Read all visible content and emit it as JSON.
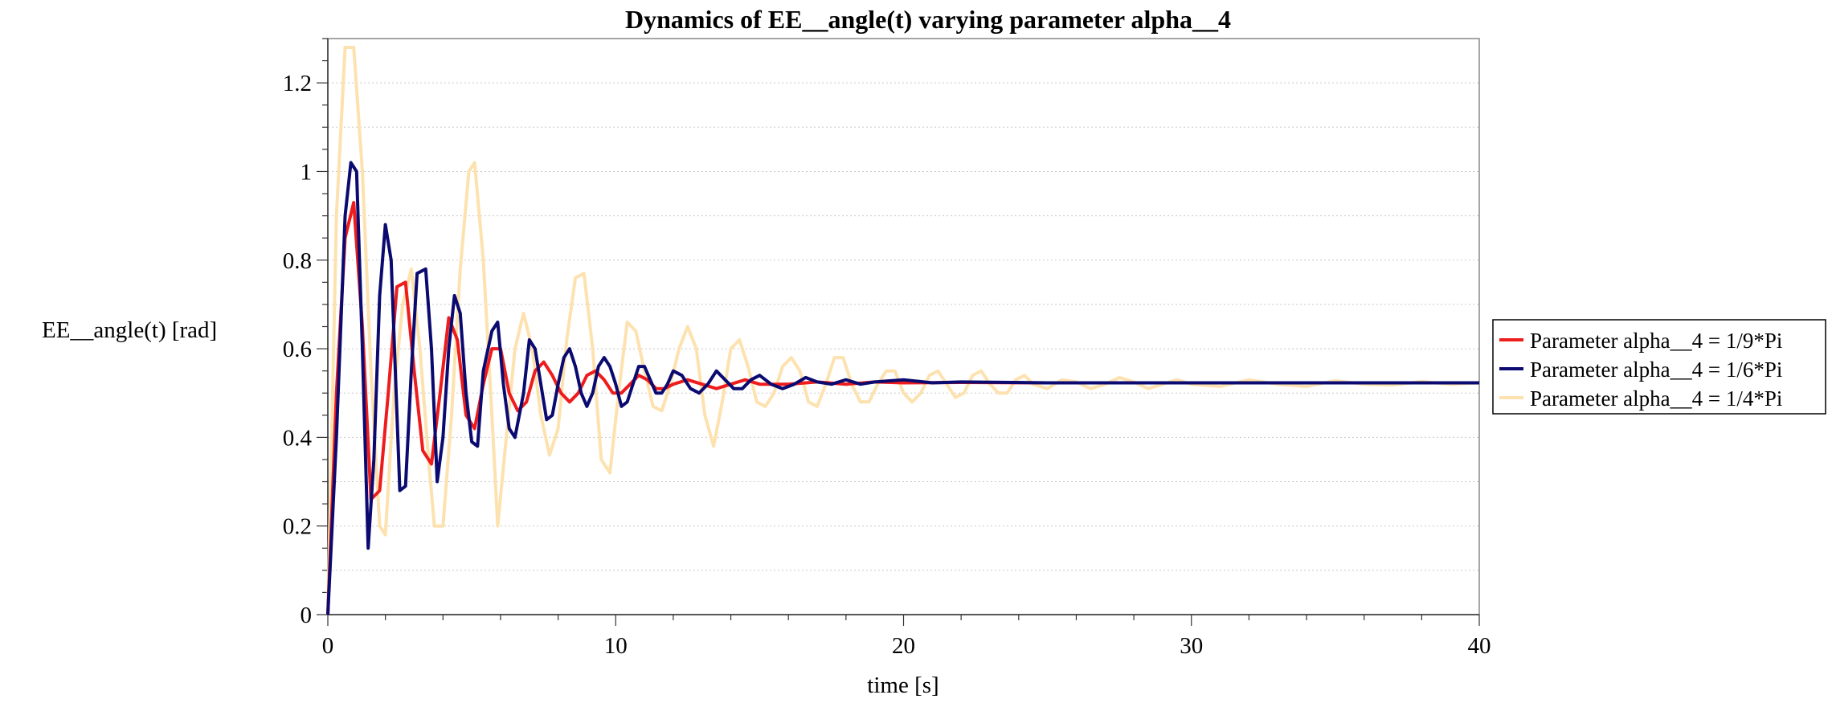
{
  "chart_data": {
    "type": "line",
    "title": "Dynamics of EE__angle(t) varying parameter alpha__4",
    "xlabel": "time [s]",
    "ylabel": "EE__angle(t) [rad]",
    "xlim": [
      0,
      40
    ],
    "ylim": [
      0,
      1.3
    ],
    "xticks": [
      0,
      10,
      20,
      30,
      40
    ],
    "xtick_labels": [
      "0",
      "10",
      "20",
      "30",
      "40"
    ],
    "yticks": [
      0,
      0.2,
      0.4,
      0.6,
      0.8,
      1.0,
      1.2
    ],
    "ytick_labels": [
      "0",
      "0.2",
      "0.4",
      "0.6",
      "0.8",
      "1",
      "1.2"
    ],
    "grid": "horizontal-dotted",
    "legend_position": "right",
    "series": [
      {
        "name": "Parameter alpha__4 = 1/9*Pi",
        "color": "#ee1c1c",
        "x": [
          0,
          0.3,
          0.6,
          0.9,
          1.2,
          1.5,
          1.8,
          2.1,
          2.4,
          2.7,
          3.0,
          3.3,
          3.6,
          3.9,
          4.2,
          4.5,
          4.8,
          5.1,
          5.4,
          5.7,
          6.0,
          6.3,
          6.6,
          6.9,
          7.2,
          7.5,
          7.8,
          8.1,
          8.4,
          8.7,
          9.0,
          9.3,
          9.6,
          9.9,
          10.2,
          10.5,
          10.8,
          11.1,
          11.4,
          11.7,
          12.0,
          12.5,
          13.0,
          13.5,
          14.0,
          14.5,
          15.0,
          15.5,
          16.0,
          17.0,
          18.0,
          19.0,
          20.0,
          22.0,
          25.0,
          30.0,
          35.0,
          40.0
        ],
        "y": [
          0,
          0.5,
          0.85,
          0.93,
          0.65,
          0.26,
          0.28,
          0.5,
          0.74,
          0.75,
          0.55,
          0.37,
          0.34,
          0.5,
          0.67,
          0.62,
          0.45,
          0.42,
          0.52,
          0.6,
          0.6,
          0.5,
          0.46,
          0.48,
          0.55,
          0.57,
          0.54,
          0.5,
          0.48,
          0.5,
          0.54,
          0.55,
          0.53,
          0.5,
          0.5,
          0.52,
          0.54,
          0.53,
          0.51,
          0.51,
          0.52,
          0.53,
          0.52,
          0.51,
          0.52,
          0.53,
          0.52,
          0.52,
          0.52,
          0.525,
          0.52,
          0.525,
          0.523,
          0.524,
          0.523,
          0.523,
          0.523,
          0.523
        ]
      },
      {
        "name": "Parameter alpha__4 = 1/6*Pi",
        "color": "#0a0a70",
        "x": [
          0,
          0.3,
          0.6,
          0.8,
          1.0,
          1.2,
          1.4,
          1.6,
          1.8,
          2.0,
          2.2,
          2.5,
          2.7,
          2.9,
          3.1,
          3.4,
          3.6,
          3.8,
          4.0,
          4.2,
          4.4,
          4.6,
          4.8,
          5.0,
          5.2,
          5.4,
          5.7,
          5.9,
          6.1,
          6.3,
          6.5,
          6.8,
          7.0,
          7.2,
          7.4,
          7.6,
          7.8,
          8.0,
          8.2,
          8.4,
          8.6,
          8.8,
          9.0,
          9.2,
          9.4,
          9.6,
          9.8,
          10.0,
          10.2,
          10.4,
          10.6,
          10.8,
          11.0,
          11.2,
          11.4,
          11.6,
          11.8,
          12.0,
          12.3,
          12.6,
          12.9,
          13.2,
          13.5,
          13.8,
          14.1,
          14.4,
          14.7,
          15.0,
          15.4,
          15.8,
          16.2,
          16.6,
          17.0,
          17.5,
          18.0,
          18.5,
          19.0,
          20.0,
          21.0,
          22.0,
          25.0,
          30.0,
          35.0,
          40.0
        ],
        "y": [
          0,
          0.4,
          0.9,
          1.02,
          1.0,
          0.6,
          0.15,
          0.35,
          0.72,
          0.88,
          0.8,
          0.28,
          0.29,
          0.55,
          0.77,
          0.78,
          0.6,
          0.3,
          0.4,
          0.6,
          0.72,
          0.68,
          0.5,
          0.39,
          0.38,
          0.55,
          0.64,
          0.66,
          0.52,
          0.42,
          0.4,
          0.5,
          0.62,
          0.6,
          0.52,
          0.44,
          0.45,
          0.52,
          0.58,
          0.6,
          0.56,
          0.5,
          0.47,
          0.5,
          0.56,
          0.58,
          0.56,
          0.52,
          0.47,
          0.48,
          0.52,
          0.56,
          0.56,
          0.53,
          0.5,
          0.5,
          0.52,
          0.55,
          0.54,
          0.51,
          0.5,
          0.52,
          0.55,
          0.53,
          0.51,
          0.51,
          0.53,
          0.54,
          0.52,
          0.51,
          0.52,
          0.535,
          0.525,
          0.52,
          0.53,
          0.52,
          0.525,
          0.53,
          0.523,
          0.525,
          0.523,
          0.523,
          0.523,
          0.523
        ]
      },
      {
        "name": "Parameter alpha__4 = 1/4*Pi",
        "color": "#fde2b0",
        "x": [
          0,
          0.3,
          0.6,
          0.9,
          1.2,
          1.5,
          1.8,
          2.0,
          2.3,
          2.6,
          2.9,
          3.2,
          3.5,
          3.7,
          4.0,
          4.3,
          4.6,
          4.9,
          5.1,
          5.4,
          5.7,
          5.9,
          6.2,
          6.5,
          6.8,
          7.1,
          7.4,
          7.7,
          8.0,
          8.3,
          8.6,
          8.9,
          9.2,
          9.5,
          9.8,
          10.1,
          10.4,
          10.7,
          11.0,
          11.3,
          11.6,
          11.9,
          12.2,
          12.5,
          12.8,
          13.1,
          13.4,
          13.7,
          14.0,
          14.3,
          14.6,
          14.9,
          15.2,
          15.5,
          15.8,
          16.1,
          16.4,
          16.7,
          17.0,
          17.3,
          17.6,
          17.9,
          18.2,
          18.5,
          18.8,
          19.1,
          19.4,
          19.7,
          20.0,
          20.3,
          20.6,
          20.9,
          21.2,
          21.5,
          21.8,
          22.1,
          22.4,
          22.7,
          23.0,
          23.3,
          23.6,
          23.9,
          24.2,
          24.5,
          25.0,
          25.5,
          26.0,
          26.5,
          27.0,
          27.5,
          28.0,
          28.5,
          29.0,
          29.5,
          30.0,
          31.0,
          32.0,
          33.0,
          34.0,
          35.0,
          36.0,
          37.0,
          38.0,
          39.0,
          40.0
        ],
        "y": [
          0,
          0.9,
          1.28,
          1.28,
          1.0,
          0.55,
          0.2,
          0.18,
          0.5,
          0.7,
          0.78,
          0.6,
          0.35,
          0.2,
          0.2,
          0.45,
          0.78,
          1.0,
          1.02,
          0.8,
          0.45,
          0.2,
          0.4,
          0.6,
          0.68,
          0.6,
          0.45,
          0.36,
          0.42,
          0.62,
          0.76,
          0.77,
          0.6,
          0.35,
          0.32,
          0.5,
          0.66,
          0.64,
          0.55,
          0.47,
          0.46,
          0.52,
          0.6,
          0.65,
          0.6,
          0.45,
          0.38,
          0.48,
          0.6,
          0.62,
          0.56,
          0.48,
          0.47,
          0.5,
          0.56,
          0.58,
          0.55,
          0.48,
          0.47,
          0.52,
          0.58,
          0.58,
          0.52,
          0.48,
          0.48,
          0.52,
          0.55,
          0.55,
          0.5,
          0.48,
          0.5,
          0.54,
          0.55,
          0.52,
          0.49,
          0.5,
          0.54,
          0.55,
          0.52,
          0.5,
          0.5,
          0.53,
          0.54,
          0.52,
          0.51,
          0.53,
          0.525,
          0.51,
          0.52,
          0.535,
          0.525,
          0.51,
          0.52,
          0.53,
          0.52,
          0.515,
          0.53,
          0.52,
          0.515,
          0.528,
          0.52,
          0.518,
          0.526,
          0.52,
          0.523
        ]
      }
    ]
  }
}
